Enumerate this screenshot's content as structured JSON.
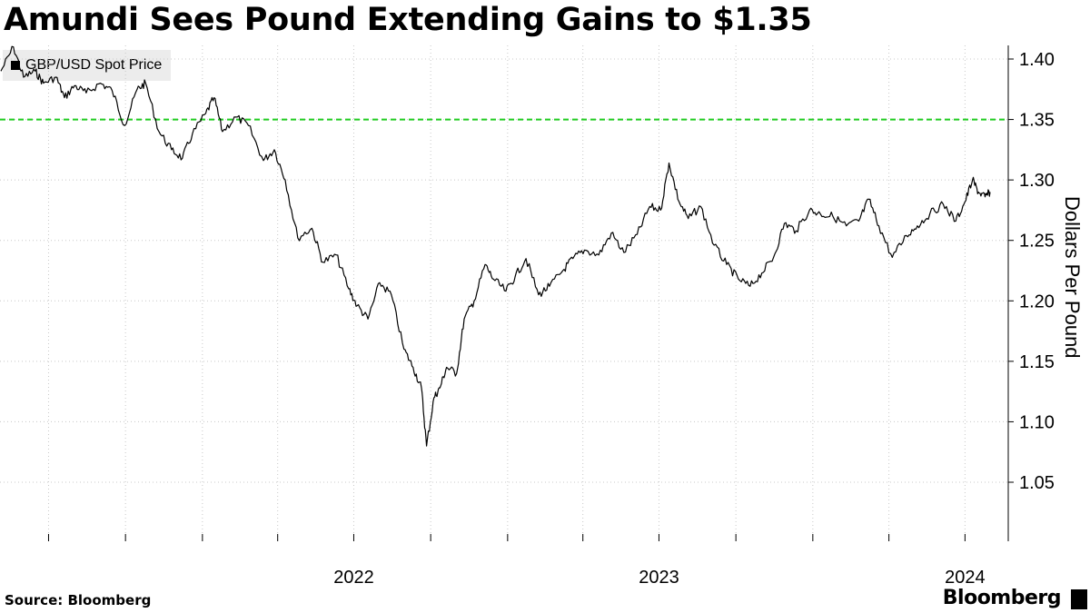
{
  "title": "Amundi Sees Pound Extending Gains to $1.35",
  "source": "Source: Bloomberg",
  "brand": "Bloomberg",
  "brand_icon": "bloomberg-terminal-icon",
  "chart_data": {
    "type": "line",
    "title": "Amundi Sees Pound Extending Gains to $1.35",
    "ylabel": "Dollars Per Pound",
    "ylim": [
      1.0,
      1.4
    ],
    "yticks": [
      "1.40",
      "1.35",
      "1.30",
      "1.25",
      "1.20",
      "1.15",
      "1.10",
      "1.05"
    ],
    "xticks": [
      "2022",
      "2023",
      "2024"
    ],
    "grid": true,
    "legend": "top-left",
    "reference_line": {
      "value": 1.35,
      "color": "#22cc22",
      "style": "dashed"
    },
    "series": [
      {
        "name": "GBP/USD Spot Price",
        "color": "#000000",
        "x": [
          "2021-05-05",
          "2021-05-20",
          "2021-06-01",
          "2021-06-15",
          "2021-06-25",
          "2021-07-10",
          "2021-07-20",
          "2021-08-01",
          "2021-08-15",
          "2021-09-01",
          "2021-09-15",
          "2021-09-30",
          "2021-10-15",
          "2021-10-25",
          "2021-11-10",
          "2021-11-25",
          "2021-12-08",
          "2021-12-20",
          "2022-01-05",
          "2022-01-15",
          "2022-01-25",
          "2022-02-10",
          "2022-02-25",
          "2022-03-15",
          "2022-03-28",
          "2022-04-10",
          "2022-04-25",
          "2022-05-12",
          "2022-05-25",
          "2022-06-10",
          "2022-06-25",
          "2022-07-05",
          "2022-07-18",
          "2022-08-01",
          "2022-08-15",
          "2022-08-30",
          "2022-09-10",
          "2022-09-20",
          "2022-09-26",
          "2022-10-05",
          "2022-10-12",
          "2022-10-20",
          "2022-11-01",
          "2022-11-10",
          "2022-11-22",
          "2022-12-05",
          "2022-12-15",
          "2022-12-30",
          "2023-01-10",
          "2023-01-23",
          "2023-02-07",
          "2023-02-20",
          "2023-03-08",
          "2023-03-20",
          "2023-04-03",
          "2023-04-20",
          "2023-05-05",
          "2023-05-20",
          "2023-06-05",
          "2023-06-20",
          "2023-07-03",
          "2023-07-13",
          "2023-07-25",
          "2023-08-05",
          "2023-08-20",
          "2023-09-05",
          "2023-09-20",
          "2023-10-04",
          "2023-10-18",
          "2023-11-01",
          "2023-11-15",
          "2023-11-28",
          "2023-12-12",
          "2023-12-28",
          "2024-01-10",
          "2024-01-25",
          "2024-02-10",
          "2024-02-25",
          "2024-03-08",
          "2024-03-20",
          "2024-04-05",
          "2024-04-22",
          "2024-05-05",
          "2024-05-20",
          "2024-06-05",
          "2024-06-20",
          "2024-07-01",
          "2024-07-10",
          "2024-07-17",
          "2024-07-25",
          "2024-07-31"
        ],
        "values": [
          1.39,
          1.41,
          1.385,
          1.39,
          1.38,
          1.385,
          1.368,
          1.378,
          1.372,
          1.38,
          1.374,
          1.345,
          1.375,
          1.38,
          1.34,
          1.325,
          1.318,
          1.338,
          1.355,
          1.368,
          1.34,
          1.352,
          1.345,
          1.316,
          1.325,
          1.3,
          1.252,
          1.26,
          1.232,
          1.238,
          1.21,
          1.196,
          1.185,
          1.215,
          1.205,
          1.16,
          1.145,
          1.128,
          1.08,
          1.12,
          1.128,
          1.145,
          1.14,
          1.185,
          1.2,
          1.23,
          1.218,
          1.208,
          1.22,
          1.235,
          1.205,
          1.212,
          1.225,
          1.235,
          1.242,
          1.238,
          1.256,
          1.24,
          1.255,
          1.278,
          1.275,
          1.314,
          1.282,
          1.268,
          1.278,
          1.246,
          1.23,
          1.218,
          1.212,
          1.223,
          1.236,
          1.264,
          1.258,
          1.275,
          1.272,
          1.27,
          1.262,
          1.266,
          1.284,
          1.262,
          1.236,
          1.254,
          1.262,
          1.272,
          1.28,
          1.266,
          1.282,
          1.3,
          1.29,
          1.286,
          1.29
        ]
      }
    ]
  }
}
